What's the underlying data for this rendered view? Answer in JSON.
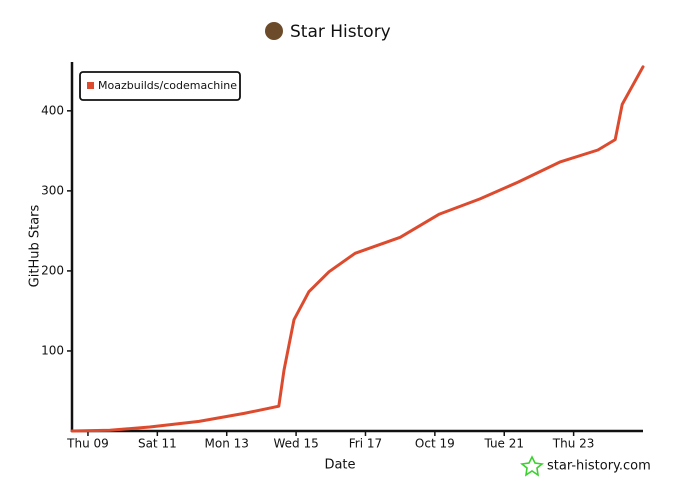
{
  "chart_data": {
    "type": "line",
    "title": "Star History",
    "x_label": "Date",
    "y_label": "GitHub Stars",
    "x": [
      8.54,
      9.63,
      10.78,
      12.2,
      13.5,
      14.5,
      14.65,
      14.94,
      15.37,
      15.95,
      16.7,
      18,
      19.13,
      20.3,
      21.4,
      22.6,
      23.7,
      24.2,
      24.4,
      25.0
    ],
    "series": [
      {
        "name": "Moazbuilds/codemachine",
        "color": "#dd4b2f",
        "values": [
          0,
          1,
          5,
          12,
          22,
          31,
          76,
          139,
          174,
          199,
          222,
          242,
          271,
          290,
          311,
          336,
          351,
          364,
          408,
          455
        ]
      }
    ],
    "xlim": [
      8.54,
      25.0
    ],
    "xticks": [
      {
        "value": 9,
        "label": "Thu 09"
      },
      {
        "value": 11,
        "label": "Sat 11"
      },
      {
        "value": 13,
        "label": "Mon 13"
      },
      {
        "value": 15,
        "label": "Wed 15"
      },
      {
        "value": 17,
        "label": "Fri 17"
      },
      {
        "value": 19,
        "label": "Oct 19"
      },
      {
        "value": 21,
        "label": "Tue 21"
      },
      {
        "value": 23,
        "label": "Thu 23"
      }
    ],
    "ylim": [
      0,
      461
    ],
    "yticks": [
      100,
      200,
      300,
      400
    ],
    "legend": "top-left",
    "watermark": "star-history.com"
  }
}
